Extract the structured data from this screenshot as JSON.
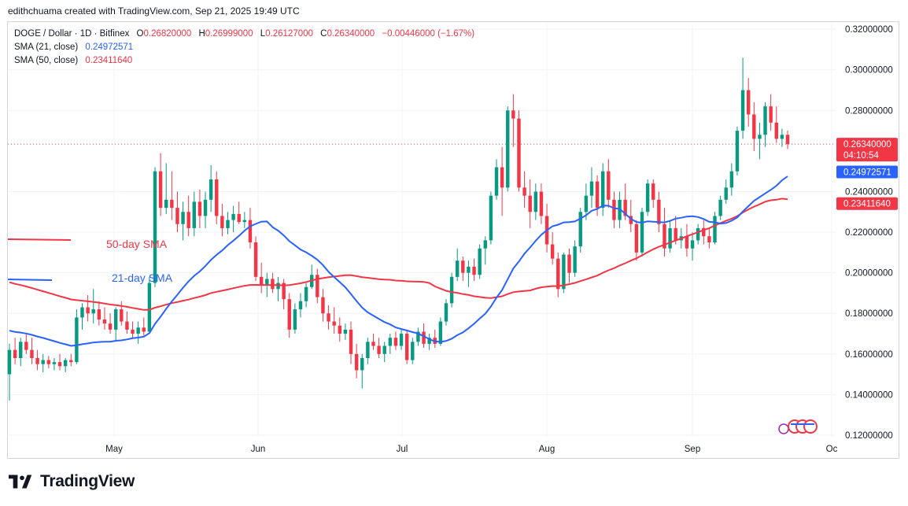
{
  "attribution": "edithchuama created with TradingView.com, Sep 21, 2025 19:49 UTC",
  "legend": {
    "symbol": "DOGE / Dollar · 1D · Bitfinex",
    "o_label": "O",
    "o_value": "0.26820000",
    "h_label": "H",
    "h_value": "0.26999000",
    "l_label": "L",
    "l_value": "0.26127000",
    "c_label": "C",
    "c_value": "0.26340000",
    "change": "−0.00446000 (−1.67%)",
    "sma21_label": "SMA (21, close)",
    "sma21_value": "0.24972571",
    "sma50_label": "SMA (50, close)",
    "sma50_value": "0.23411640"
  },
  "logo": {
    "name": "TradingView"
  },
  "chart_data": {
    "type": "candlestick",
    "y_ticks": [
      "0.32000000",
      "0.30000000",
      "0.28000000",
      "0.24000000",
      "0.22000000",
      "0.20000000",
      "0.18000000",
      "0.16000000",
      "0.14000000",
      "0.12000000"
    ],
    "x_labels": [
      "May",
      "Jun",
      "Jul",
      "Aug",
      "Sep",
      "Oc"
    ],
    "ylim": [
      0.12,
      0.322
    ],
    "badges": {
      "last_price": "0.26340000",
      "countdown": "04:10:54",
      "sma21": "0.24972571",
      "sma50": "0.23411640"
    },
    "annotations": {
      "sma50": "50-day SMA",
      "sma21": "21-day SMA"
    },
    "colors": {
      "up": "#089981",
      "down": "#f23645",
      "sma21": "#2962ff",
      "sma50": "#f23645"
    },
    "candles": [
      [
        0.15,
        0.165,
        0.137,
        0.162
      ],
      [
        0.162,
        0.168,
        0.155,
        0.158
      ],
      [
        0.158,
        0.168,
        0.154,
        0.166
      ],
      [
        0.166,
        0.17,
        0.16,
        0.162
      ],
      [
        0.162,
        0.168,
        0.155,
        0.158
      ],
      [
        0.158,
        0.162,
        0.152,
        0.155
      ],
      [
        0.155,
        0.16,
        0.151,
        0.157
      ],
      [
        0.157,
        0.159,
        0.153,
        0.155
      ],
      [
        0.155,
        0.158,
        0.152,
        0.156
      ],
      [
        0.156,
        0.16,
        0.152,
        0.154
      ],
      [
        0.154,
        0.158,
        0.151,
        0.157
      ],
      [
        0.157,
        0.16,
        0.154,
        0.156
      ],
      [
        0.156,
        0.182,
        0.155,
        0.178
      ],
      [
        0.178,
        0.185,
        0.172,
        0.183
      ],
      [
        0.183,
        0.189,
        0.176,
        0.18
      ],
      [
        0.18,
        0.192,
        0.175,
        0.182
      ],
      [
        0.182,
        0.186,
        0.174,
        0.177
      ],
      [
        0.177,
        0.183,
        0.172,
        0.175
      ],
      [
        0.175,
        0.18,
        0.17,
        0.172
      ],
      [
        0.172,
        0.183,
        0.166,
        0.182
      ],
      [
        0.182,
        0.186,
        0.174,
        0.176
      ],
      [
        0.176,
        0.181,
        0.17,
        0.172
      ],
      [
        0.172,
        0.176,
        0.168,
        0.17
      ],
      [
        0.17,
        0.176,
        0.165,
        0.173
      ],
      [
        0.173,
        0.178,
        0.169,
        0.171
      ],
      [
        0.171,
        0.198,
        0.17,
        0.195
      ],
      [
        0.195,
        0.252,
        0.193,
        0.25
      ],
      [
        0.25,
        0.259,
        0.228,
        0.232
      ],
      [
        0.232,
        0.254,
        0.229,
        0.236
      ],
      [
        0.236,
        0.25,
        0.226,
        0.232
      ],
      [
        0.232,
        0.24,
        0.22,
        0.224
      ],
      [
        0.224,
        0.235,
        0.216,
        0.23
      ],
      [
        0.23,
        0.238,
        0.218,
        0.222
      ],
      [
        0.222,
        0.24,
        0.218,
        0.235
      ],
      [
        0.235,
        0.241,
        0.222,
        0.228
      ],
      [
        0.228,
        0.24,
        0.222,
        0.236
      ],
      [
        0.236,
        0.253,
        0.23,
        0.246
      ],
      [
        0.246,
        0.25,
        0.224,
        0.228
      ],
      [
        0.228,
        0.234,
        0.218,
        0.222
      ],
      [
        0.222,
        0.23,
        0.219,
        0.226
      ],
      [
        0.226,
        0.233,
        0.22,
        0.229
      ],
      [
        0.229,
        0.235,
        0.224,
        0.225
      ],
      [
        0.225,
        0.23,
        0.222,
        0.226
      ],
      [
        0.226,
        0.232,
        0.212,
        0.215
      ],
      [
        0.215,
        0.218,
        0.196,
        0.198
      ],
      [
        0.198,
        0.205,
        0.19,
        0.194
      ],
      [
        0.194,
        0.2,
        0.188,
        0.197
      ],
      [
        0.197,
        0.2,
        0.19,
        0.192
      ],
      [
        0.192,
        0.198,
        0.186,
        0.195
      ],
      [
        0.195,
        0.197,
        0.182,
        0.187
      ],
      [
        0.187,
        0.19,
        0.168,
        0.172
      ],
      [
        0.172,
        0.185,
        0.17,
        0.182
      ],
      [
        0.182,
        0.19,
        0.178,
        0.186
      ],
      [
        0.186,
        0.195,
        0.183,
        0.193
      ],
      [
        0.193,
        0.204,
        0.192,
        0.199
      ],
      [
        0.199,
        0.202,
        0.185,
        0.188
      ],
      [
        0.188,
        0.192,
        0.176,
        0.18
      ],
      [
        0.18,
        0.184,
        0.172,
        0.176
      ],
      [
        0.176,
        0.183,
        0.17,
        0.174
      ],
      [
        0.174,
        0.178,
        0.166,
        0.17
      ],
      [
        0.17,
        0.175,
        0.167,
        0.172
      ],
      [
        0.172,
        0.176,
        0.155,
        0.16
      ],
      [
        0.16,
        0.165,
        0.148,
        0.152
      ],
      [
        0.152,
        0.16,
        0.143,
        0.158
      ],
      [
        0.158,
        0.168,
        0.155,
        0.166
      ],
      [
        0.166,
        0.17,
        0.162,
        0.164
      ],
      [
        0.164,
        0.168,
        0.158,
        0.16
      ],
      [
        0.16,
        0.166,
        0.156,
        0.164
      ],
      [
        0.164,
        0.17,
        0.16,
        0.168
      ],
      [
        0.168,
        0.171,
        0.162,
        0.164
      ],
      [
        0.164,
        0.172,
        0.162,
        0.17
      ],
      [
        0.17,
        0.172,
        0.155,
        0.157
      ],
      [
        0.157,
        0.168,
        0.155,
        0.166
      ],
      [
        0.166,
        0.173,
        0.164,
        0.171
      ],
      [
        0.171,
        0.175,
        0.163,
        0.165
      ],
      [
        0.165,
        0.17,
        0.162,
        0.168
      ],
      [
        0.168,
        0.172,
        0.163,
        0.165
      ],
      [
        0.165,
        0.178,
        0.164,
        0.176
      ],
      [
        0.176,
        0.187,
        0.174,
        0.185
      ],
      [
        0.185,
        0.2,
        0.183,
        0.198
      ],
      [
        0.198,
        0.212,
        0.196,
        0.206
      ],
      [
        0.206,
        0.208,
        0.196,
        0.2
      ],
      [
        0.2,
        0.206,
        0.193,
        0.203
      ],
      [
        0.203,
        0.207,
        0.196,
        0.199
      ],
      [
        0.199,
        0.214,
        0.197,
        0.212
      ],
      [
        0.212,
        0.218,
        0.204,
        0.216
      ],
      [
        0.216,
        0.24,
        0.214,
        0.238
      ],
      [
        0.238,
        0.256,
        0.236,
        0.252
      ],
      [
        0.252,
        0.262,
        0.228,
        0.242
      ],
      [
        0.242,
        0.282,
        0.24,
        0.28
      ],
      [
        0.28,
        0.288,
        0.262,
        0.276
      ],
      [
        0.276,
        0.28,
        0.24,
        0.242
      ],
      [
        0.242,
        0.25,
        0.232,
        0.238
      ],
      [
        0.238,
        0.246,
        0.222,
        0.23
      ],
      [
        0.23,
        0.244,
        0.226,
        0.24
      ],
      [
        0.24,
        0.244,
        0.224,
        0.228
      ],
      [
        0.228,
        0.234,
        0.21,
        0.214
      ],
      [
        0.214,
        0.22,
        0.204,
        0.207
      ],
      [
        0.207,
        0.21,
        0.188,
        0.192
      ],
      [
        0.192,
        0.21,
        0.19,
        0.209
      ],
      [
        0.209,
        0.212,
        0.195,
        0.2
      ],
      [
        0.2,
        0.216,
        0.198,
        0.213
      ],
      [
        0.213,
        0.232,
        0.21,
        0.23
      ],
      [
        0.23,
        0.244,
        0.226,
        0.238
      ],
      [
        0.238,
        0.252,
        0.232,
        0.245
      ],
      [
        0.245,
        0.248,
        0.228,
        0.232
      ],
      [
        0.232,
        0.254,
        0.228,
        0.25
      ],
      [
        0.25,
        0.256,
        0.232,
        0.236
      ],
      [
        0.236,
        0.24,
        0.222,
        0.226
      ],
      [
        0.226,
        0.24,
        0.222,
        0.236
      ],
      [
        0.236,
        0.244,
        0.226,
        0.228
      ],
      [
        0.228,
        0.236,
        0.22,
        0.224
      ],
      [
        0.224,
        0.226,
        0.206,
        0.21
      ],
      [
        0.21,
        0.232,
        0.208,
        0.23
      ],
      [
        0.23,
        0.246,
        0.228,
        0.244
      ],
      [
        0.244,
        0.246,
        0.232,
        0.236
      ],
      [
        0.236,
        0.24,
        0.22,
        0.224
      ],
      [
        0.224,
        0.232,
        0.208,
        0.212
      ],
      [
        0.212,
        0.226,
        0.21,
        0.222
      ],
      [
        0.222,
        0.228,
        0.214,
        0.216
      ],
      [
        0.216,
        0.222,
        0.212,
        0.218
      ],
      [
        0.218,
        0.224,
        0.208,
        0.212
      ],
      [
        0.212,
        0.22,
        0.206,
        0.216
      ],
      [
        0.216,
        0.224,
        0.214,
        0.222
      ],
      [
        0.222,
        0.226,
        0.214,
        0.218
      ],
      [
        0.218,
        0.222,
        0.212,
        0.215
      ],
      [
        0.215,
        0.23,
        0.214,
        0.228
      ],
      [
        0.228,
        0.238,
        0.226,
        0.236
      ],
      [
        0.236,
        0.246,
        0.234,
        0.242
      ],
      [
        0.242,
        0.254,
        0.238,
        0.25
      ],
      [
        0.25,
        0.272,
        0.248,
        0.27
      ],
      [
        0.27,
        0.306,
        0.266,
        0.29
      ],
      [
        0.29,
        0.296,
        0.272,
        0.278
      ],
      [
        0.278,
        0.284,
        0.26,
        0.266
      ],
      [
        0.266,
        0.274,
        0.256,
        0.268
      ],
      [
        0.268,
        0.284,
        0.262,
        0.282
      ],
      [
        0.282,
        0.288,
        0.27,
        0.274
      ],
      [
        0.274,
        0.282,
        0.264,
        0.266
      ],
      [
        0.266,
        0.271,
        0.262,
        0.268
      ],
      [
        0.268,
        0.27,
        0.261,
        0.2634
      ]
    ]
  }
}
